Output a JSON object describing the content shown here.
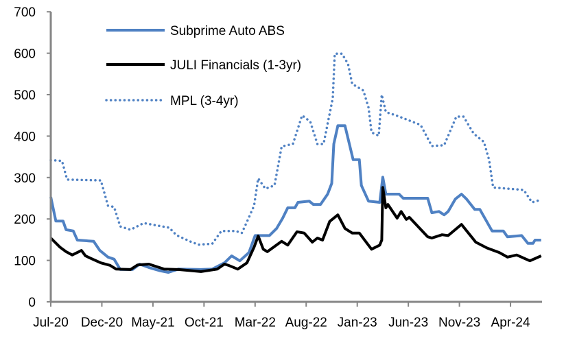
{
  "chart_data": {
    "type": "line",
    "title": "",
    "xlabel": "",
    "ylabel": "",
    "x_unit": "months since Jul-20",
    "xlim": [
      0,
      48
    ],
    "ylim": [
      0,
      700
    ],
    "yticks": [
      0,
      100,
      200,
      300,
      400,
      500,
      600,
      700
    ],
    "xtick_labels": [
      "Jul-20",
      "Dec-20",
      "May-21",
      "Oct-21",
      "Mar-22",
      "Aug-22",
      "Jan-23",
      "Jun-23",
      "Nov-23",
      "Apr-24"
    ],
    "xtick_months": [
      0,
      5,
      10,
      15,
      20,
      25,
      30,
      35,
      40,
      45
    ],
    "grid": false,
    "legend_position": "top-left",
    "series": [
      {
        "name": "Subprime Auto ABS",
        "color": "#4F81C3",
        "style": "solid",
        "x": [
          0,
          0.5,
          1.2,
          1.5,
          2.2,
          2.6,
          4.2,
          4.8,
          5.6,
          6.2,
          6.8,
          8.0,
          8.7,
          9.6,
          10.7,
          11.5,
          12.5,
          14.7,
          15.8,
          17.0,
          17.7,
          18.5,
          19.4,
          20.0,
          20.5,
          21.4,
          22.1,
          22.7,
          23.2,
          23.9,
          24.2,
          25.3,
          25.7,
          26.4,
          27.1,
          27.5,
          27.7,
          28.1,
          28.8,
          29.6,
          30.2,
          30.4,
          31.1,
          32.2,
          32.5,
          32.8,
          34.1,
          34.5,
          36.9,
          37.3,
          38.0,
          38.5,
          38.9,
          39.6,
          40.2,
          40.7,
          41.5,
          42.0,
          43.2,
          44.3,
          44.7,
          46.1,
          46.7,
          47.2,
          47.4,
          48.0
        ],
        "y": [
          253,
          195,
          195,
          174,
          171,
          149,
          146,
          124,
          108,
          103,
          78,
          78,
          91,
          83,
          75,
          71,
          79,
          78,
          79,
          94,
          111,
          99,
          119,
          160,
          160,
          160,
          177,
          202,
          227,
          227,
          240,
          243,
          235,
          235,
          260,
          286,
          381,
          425,
          425,
          343,
          343,
          281,
          243,
          240,
          301,
          260,
          260,
          250,
          250,
          215,
          218,
          210,
          218,
          248,
          260,
          248,
          223,
          223,
          171,
          171,
          157,
          160,
          141,
          141,
          149,
          149
        ]
      },
      {
        "name": "JULI Financials (1-3yr)",
        "color": "#000000",
        "style": "solid",
        "x": [
          0,
          0.9,
          1.5,
          2.1,
          2.6,
          3.0,
          3.4,
          4.0,
          4.9,
          5.8,
          6.4,
          7.8,
          8.5,
          9.6,
          11.1,
          12.5,
          14.7,
          16.3,
          17.0,
          17.4,
          18.3,
          19.2,
          19.9,
          20.3,
          20.8,
          21.2,
          22.6,
          23.2,
          24.1,
          24.8,
          25.6,
          26.1,
          26.6,
          27.3,
          28.1,
          28.8,
          29.5,
          30.2,
          31.4,
          32.2,
          32.4,
          32.5,
          32.8,
          33.0,
          33.9,
          34.3,
          34.8,
          35.1,
          36.9,
          37.3,
          38.3,
          38.9,
          40.2,
          41.6,
          42.7,
          43.9,
          44.7,
          45.6,
          46.9,
          48.0
        ],
        "y": [
          154,
          132,
          121,
          113,
          119,
          124,
          111,
          104,
          94,
          88,
          79,
          78,
          89,
          91,
          79,
          78,
          73,
          79,
          91,
          88,
          79,
          94,
          132,
          159,
          127,
          121,
          146,
          137,
          169,
          166,
          144,
          154,
          149,
          194,
          210,
          177,
          166,
          166,
          127,
          137,
          149,
          276,
          227,
          235,
          202,
          218,
          199,
          204,
          157,
          154,
          162,
          160,
          187,
          144,
          130,
          119,
          108,
          113,
          99,
          111
        ]
      },
      {
        "name": "MPL (3-4yr)",
        "color": "#4F81C3",
        "style": "dotted",
        "x": [
          0,
          1.1,
          1.6,
          4.9,
          5.6,
          6.2,
          6.8,
          7.8,
          9.1,
          11.6,
          12.3,
          13.8,
          14.5,
          15.8,
          16.7,
          18.1,
          18.7,
          19.2,
          19.9,
          20.3,
          21.0,
          21.9,
          22.6,
          23.7,
          24.6,
          25.4,
          26.1,
          26.7,
          27.1,
          27.6,
          27.8,
          28.5,
          29.1,
          29.5,
          30.6,
          31.1,
          31.4,
          32.1,
          32.4,
          32.8,
          33.8,
          36.2,
          37.3,
          38.5,
          39.7,
          40.4,
          41.4,
          42.4,
          42.9,
          43.3,
          46.3,
          47.1,
          47.8
        ],
        "y": [
          342,
          340,
          295,
          293,
          232,
          229,
          182,
          174,
          190,
          179,
          161,
          144,
          138,
          140,
          171,
          171,
          166,
          193,
          232,
          298,
          273,
          281,
          375,
          381,
          450,
          435,
          381,
          381,
          430,
          491,
          599,
          599,
          574,
          526,
          510,
          469,
          409,
          401,
          500,
          458,
          450,
          427,
          376,
          378,
          447,
          447,
          406,
          386,
          343,
          276,
          270,
          240,
          245
        ]
      }
    ]
  }
}
